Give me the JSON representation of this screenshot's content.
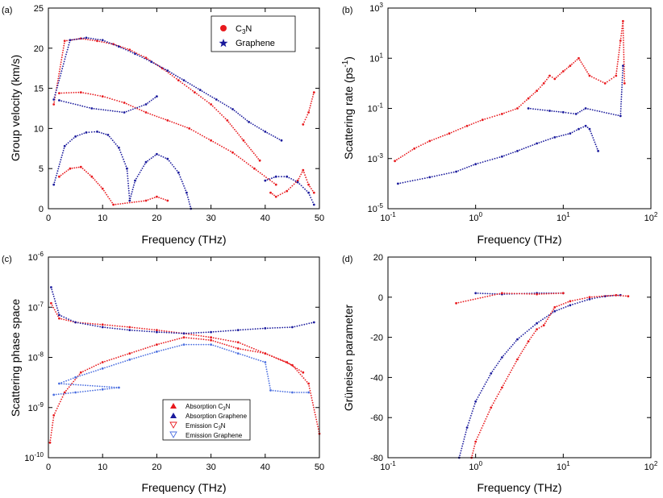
{
  "chart_data": [
    {
      "id": "a",
      "panel_label": "(a)",
      "type": "scatter",
      "xlabel": "Frequency (THz)",
      "ylabel": "Group velocity (km/s)",
      "xscale": "linear",
      "yscale": "linear",
      "xlim": [
        0,
        50
      ],
      "ylim": [
        0,
        25
      ],
      "xticks": [
        "0",
        "10",
        "20",
        "30",
        "40",
        "50"
      ],
      "yticks": [
        "0",
        "5",
        "10",
        "15",
        "20",
        "25"
      ],
      "legend_position": "top-right",
      "legend": [
        {
          "label": "C",
          "sub": "3",
          "tail": "N",
          "marker": "circle",
          "color": "#e8191d"
        },
        {
          "label": "Graphene",
          "sub": "",
          "tail": "",
          "marker": "star",
          "color": "#1a1a9c"
        }
      ],
      "series": [
        {
          "name": "C3N",
          "color": "#e8191d",
          "points": [
            [
              1,
              13
            ],
            [
              3,
              20.9
            ],
            [
              6,
              21.2
            ],
            [
              9,
              20.9
            ],
            [
              12,
              20.5
            ],
            [
              15,
              19.8
            ],
            [
              18,
              18.8
            ],
            [
              21,
              17.5
            ],
            [
              24,
              16
            ],
            [
              27,
              14.5
            ],
            [
              30,
              13
            ],
            [
              33,
              11
            ],
            [
              36,
              8.5
            ],
            [
              39,
              6
            ],
            [
              2,
              14.4
            ],
            [
              6,
              14.5
            ],
            [
              10,
              14
            ],
            [
              14,
              13.2
            ],
            [
              18,
              12
            ],
            [
              22,
              11
            ],
            [
              26,
              10
            ],
            [
              30,
              8.5
            ],
            [
              34,
              7
            ],
            [
              38,
              5
            ],
            [
              42,
              3
            ],
            [
              2,
              4
            ],
            [
              4,
              5
            ],
            [
              6,
              5.2
            ],
            [
              8,
              4
            ],
            [
              10,
              2.5
            ],
            [
              12,
              0.5
            ],
            [
              18,
              1
            ],
            [
              20,
              1.5
            ],
            [
              22,
              1
            ],
            [
              41,
              2
            ],
            [
              42,
              1.5
            ],
            [
              44,
              2.2
            ],
            [
              46,
              3.5
            ],
            [
              47,
              4.8
            ],
            [
              48,
              3
            ],
            [
              49,
              2
            ],
            [
              49,
              14.5
            ],
            [
              48,
              12
            ],
            [
              47,
              10.5
            ]
          ]
        },
        {
          "name": "Graphene",
          "color": "#1a1a9c",
          "points": [
            [
              1,
              13.6
            ],
            [
              4,
              21
            ],
            [
              7,
              21.3
            ],
            [
              10,
              21
            ],
            [
              13,
              20.2
            ],
            [
              16,
              19.3
            ],
            [
              19,
              18.3
            ],
            [
              22,
              17.2
            ],
            [
              25,
              16
            ],
            [
              28,
              14.8
            ],
            [
              31,
              13.6
            ],
            [
              34,
              12.4
            ],
            [
              37,
              10.8
            ],
            [
              40,
              9.6
            ],
            [
              43,
              8.5
            ],
            [
              1,
              3
            ],
            [
              3,
              7.8
            ],
            [
              5,
              9
            ],
            [
              7,
              9.5
            ],
            [
              9,
              9.6
            ],
            [
              11,
              9.2
            ],
            [
              13,
              7.6
            ],
            [
              14.5,
              5
            ],
            [
              15,
              1
            ],
            [
              16,
              3.5
            ],
            [
              18,
              5.8
            ],
            [
              20,
              6.8
            ],
            [
              22,
              6.2
            ],
            [
              24,
              4.5
            ],
            [
              25.5,
              2
            ],
            [
              26.3,
              0
            ],
            [
              2,
              13.5
            ],
            [
              8,
              12.5
            ],
            [
              14,
              12
            ],
            [
              18,
              13
            ],
            [
              20,
              14
            ],
            [
              40,
              3.5
            ],
            [
              42,
              4
            ],
            [
              44,
              4
            ],
            [
              46,
              3.3
            ],
            [
              48,
              2
            ],
            [
              49,
              0.5
            ]
          ]
        }
      ]
    },
    {
      "id": "b",
      "panel_label": "(b)",
      "type": "scatter",
      "xlabel": "Frequency (THz)",
      "ylabel": "Scattering rate (ps",
      "ylabel_sup": "-1",
      "ylabel_tail": ")",
      "xscale": "log",
      "yscale": "log",
      "xlim": [
        0.1,
        100
      ],
      "ylim": [
        1e-05,
        1000
      ],
      "xticks": [
        {
          "base": "10",
          "exp": "-1"
        },
        {
          "base": "10",
          "exp": "0"
        },
        {
          "base": "10",
          "exp": "1"
        },
        {
          "base": "10",
          "exp": "2"
        }
      ],
      "yticks": [
        {
          "base": "10",
          "exp": "-5"
        },
        {
          "base": "10",
          "exp": "-3"
        },
        {
          "base": "10",
          "exp": "-1"
        },
        {
          "base": "10",
          "exp": "1"
        },
        {
          "base": "10",
          "exp": "3"
        }
      ],
      "series": [
        {
          "name": "C3N",
          "color": "#e8191d",
          "points": [
            [
              0.12,
              0.0008
            ],
            [
              0.2,
              0.0025
            ],
            [
              0.3,
              0.005
            ],
            [
              0.5,
              0.01
            ],
            [
              0.8,
              0.02
            ],
            [
              1.2,
              0.035
            ],
            [
              2,
              0.06
            ],
            [
              3,
              0.1
            ],
            [
              4,
              0.25
            ],
            [
              5,
              0.5
            ],
            [
              6,
              1
            ],
            [
              7,
              2
            ],
            [
              8,
              1.5
            ],
            [
              10,
              3
            ],
            [
              12,
              5
            ],
            [
              15,
              10
            ],
            [
              20,
              2
            ],
            [
              30,
              1
            ],
            [
              40,
              2
            ],
            [
              45,
              50
            ],
            [
              48,
              300
            ],
            [
              50,
              1
            ]
          ]
        },
        {
          "name": "Graphene",
          "color": "#1a1a9c",
          "points": [
            [
              0.13,
              0.0001
            ],
            [
              0.3,
              0.00018
            ],
            [
              0.6,
              0.0003
            ],
            [
              1,
              0.0006
            ],
            [
              2,
              0.0012
            ],
            [
              3,
              0.002
            ],
            [
              5,
              0.004
            ],
            [
              8,
              0.007
            ],
            [
              12,
              0.01
            ],
            [
              15,
              0.015
            ],
            [
              18,
              0.02
            ],
            [
              20,
              0.015
            ],
            [
              25,
              0.002
            ],
            [
              4,
              0.1
            ],
            [
              7,
              0.08
            ],
            [
              10,
              0.07
            ],
            [
              14,
              0.06
            ],
            [
              18,
              0.1
            ],
            [
              45,
              0.05
            ],
            [
              48,
              5
            ]
          ]
        }
      ]
    },
    {
      "id": "c",
      "panel_label": "(c)",
      "type": "scatter",
      "xlabel": "Frequency (THz)",
      "ylabel": "Scattering phase space",
      "xscale": "linear",
      "yscale": "log",
      "xlim": [
        0,
        50
      ],
      "ylim": [
        1e-10,
        1e-06
      ],
      "xticks": [
        "0",
        "10",
        "20",
        "30",
        "40",
        "50"
      ],
      "yticks": [
        {
          "base": "10",
          "exp": "-10"
        },
        {
          "base": "10",
          "exp": "-9"
        },
        {
          "base": "10",
          "exp": "-8"
        },
        {
          "base": "10",
          "exp": "-7"
        },
        {
          "base": "10",
          "exp": "-6"
        }
      ],
      "legend_position": "bottom-center",
      "legend": [
        {
          "label": "Absorption C",
          "sub": "3",
          "tail": "N",
          "marker": "triangle-filled",
          "color": "#e8191d"
        },
        {
          "label": "Absorption Graphene",
          "sub": "",
          "tail": "",
          "marker": "triangle-filled",
          "color": "#1a1a9c"
        },
        {
          "label": "Emission C",
          "sub": "3",
          "tail": "N",
          "marker": "triangle-open-down",
          "color": "#e8191d"
        },
        {
          "label": "Emission Graphene",
          "sub": "",
          "tail": "",
          "marker": "triangle-open-down",
          "color": "#4a6ee0"
        }
      ],
      "series": [
        {
          "name": "Absorption C3N",
          "color": "#e8191d",
          "points": [
            [
              0.5,
              1.2e-07
            ],
            [
              2,
              6e-08
            ],
            [
              5,
              5e-08
            ],
            [
              10,
              4.5e-08
            ],
            [
              15,
              4e-08
            ],
            [
              20,
              3.5e-08
            ],
            [
              25,
              3e-08
            ],
            [
              30,
              2.5e-08
            ],
            [
              35,
              2e-08
            ],
            [
              40,
              1.2e-08
            ],
            [
              44,
              8e-09
            ],
            [
              47,
              5e-09
            ]
          ]
        },
        {
          "name": "Absorption Graphene",
          "color": "#1a1a9c",
          "points": [
            [
              0.5,
              2.5e-07
            ],
            [
              2,
              7e-08
            ],
            [
              5,
              5e-08
            ],
            [
              10,
              4e-08
            ],
            [
              15,
              3.5e-08
            ],
            [
              20,
              3.2e-08
            ],
            [
              25,
              3e-08
            ],
            [
              30,
              3.2e-08
            ],
            [
              35,
              3.5e-08
            ],
            [
              40,
              3.8e-08
            ],
            [
              45,
              4e-08
            ],
            [
              49,
              5e-08
            ]
          ]
        },
        {
          "name": "Emission C3N",
          "color": "#e8191d",
          "points": [
            [
              0.3,
              2e-10
            ],
            [
              1,
              7e-10
            ],
            [
              3,
              2e-09
            ],
            [
              6,
              5e-09
            ],
            [
              10,
              8e-09
            ],
            [
              15,
              1.2e-08
            ],
            [
              20,
              1.8e-08
            ],
            [
              25,
              2.5e-08
            ],
            [
              30,
              2.2e-08
            ],
            [
              35,
              1.5e-08
            ],
            [
              40,
              1.2e-08
            ],
            [
              45,
              7e-09
            ],
            [
              48,
              3e-09
            ],
            [
              50,
              3e-10
            ]
          ]
        },
        {
          "name": "Emission Graphene",
          "color": "#4a6ee0",
          "points": [
            [
              1,
              1.8e-09
            ],
            [
              5,
              2e-09
            ],
            [
              10,
              2.3e-09
            ],
            [
              13,
              2.5e-09
            ],
            [
              2,
              3e-09
            ],
            [
              5,
              4e-09
            ],
            [
              10,
              6e-09
            ],
            [
              15,
              9e-09
            ],
            [
              20,
              1.3e-08
            ],
            [
              25,
              1.8e-08
            ],
            [
              30,
              1.8e-08
            ],
            [
              35,
              1.2e-08
            ],
            [
              40,
              8e-09
            ],
            [
              41,
              2.2e-09
            ],
            [
              45,
              2e-09
            ],
            [
              48,
              2e-09
            ]
          ]
        }
      ]
    },
    {
      "id": "d",
      "panel_label": "(d)",
      "type": "scatter",
      "xlabel": "Frequency (THz)",
      "ylabel": "Grüneisen parameter",
      "xscale": "log",
      "yscale": "linear",
      "xlim": [
        0.1,
        100
      ],
      "ylim": [
        -80,
        20
      ],
      "xticks": [
        {
          "base": "10",
          "exp": "-1"
        },
        {
          "base": "10",
          "exp": "0"
        },
        {
          "base": "10",
          "exp": "1"
        },
        {
          "base": "10",
          "exp": "2"
        }
      ],
      "yticks": [
        "-80",
        "-60",
        "-40",
        "-20",
        "0",
        "20"
      ],
      "series": [
        {
          "name": "Graphene",
          "color": "#1a1a9c",
          "points": [
            [
              0.65,
              -80
            ],
            [
              0.8,
              -65
            ],
            [
              1,
              -52
            ],
            [
              1.5,
              -38
            ],
            [
              2,
              -30
            ],
            [
              3,
              -21
            ],
            [
              5,
              -13
            ],
            [
              8,
              -7
            ],
            [
              12,
              -4
            ],
            [
              20,
              -1
            ],
            [
              30,
              0.5
            ],
            [
              45,
              1
            ],
            [
              1,
              2
            ],
            [
              2,
              1.5
            ],
            [
              5,
              2
            ],
            [
              10,
              2
            ]
          ]
        },
        {
          "name": "C3N",
          "color": "#e8191d",
          "points": [
            [
              0.9,
              -80
            ],
            [
              1,
              -72
            ],
            [
              1.5,
              -55
            ],
            [
              2,
              -45
            ],
            [
              3,
              -31
            ],
            [
              4,
              -22
            ],
            [
              5,
              -16
            ],
            [
              6,
              -14
            ],
            [
              8,
              -5
            ],
            [
              12,
              -2
            ],
            [
              20,
              0
            ],
            [
              40,
              1
            ],
            [
              55,
              0.5
            ],
            [
              0.6,
              -3
            ],
            [
              2,
              2
            ],
            [
              5,
              1.5
            ],
            [
              10,
              2
            ]
          ]
        }
      ]
    }
  ]
}
